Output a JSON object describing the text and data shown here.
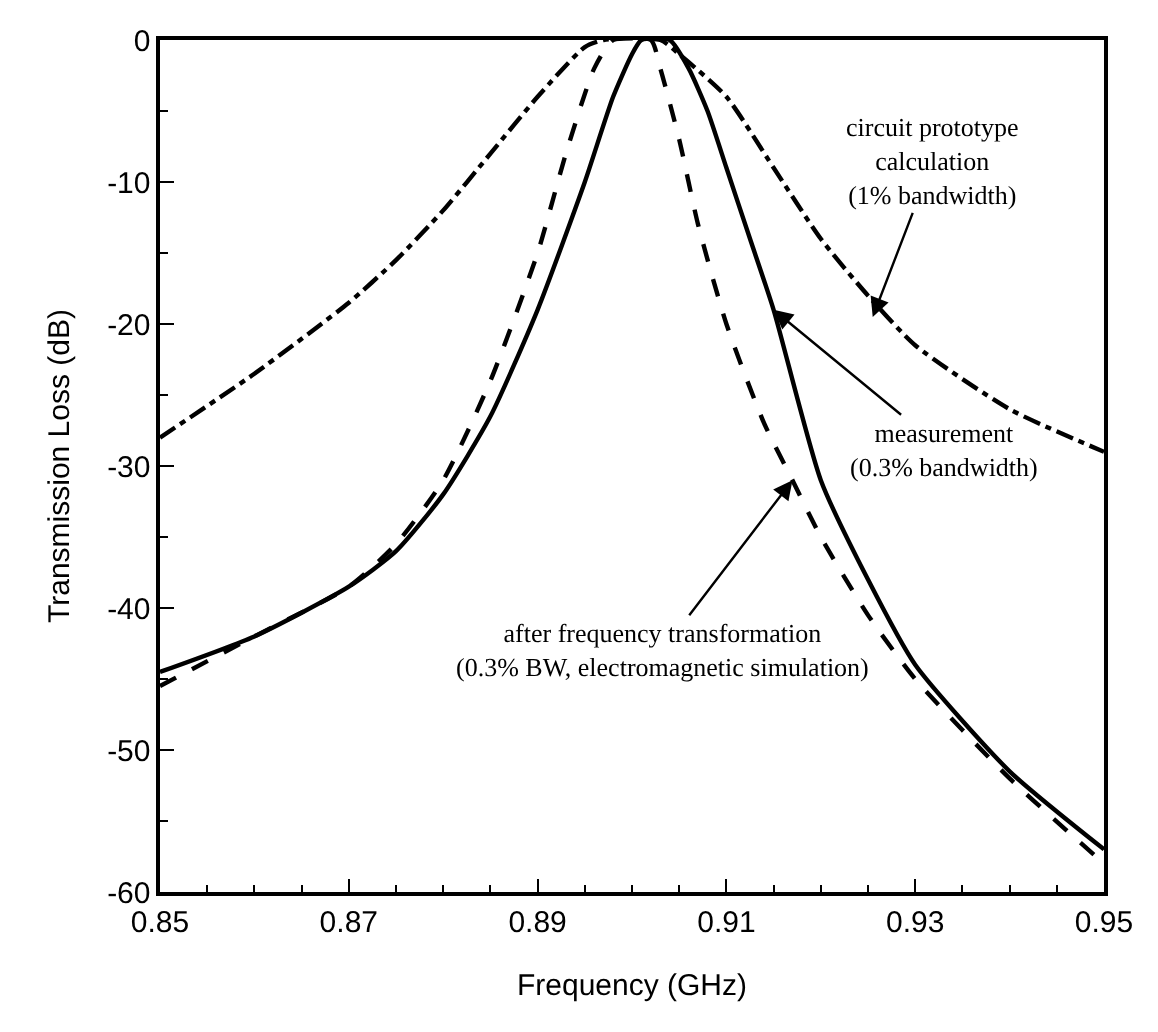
{
  "chart_data": {
    "type": "line",
    "xlabel": "Frequency (GHz)",
    "ylabel": "Transmission Loss (dB)",
    "xlim": [
      0.85,
      0.95
    ],
    "xticks": [
      0.85,
      0.87,
      0.89,
      0.91,
      0.93,
      0.95
    ],
    "ylim": [
      -60,
      0
    ],
    "yticks": [
      -60,
      -50,
      -40,
      -30,
      -20,
      -10,
      0
    ],
    "marker": "none",
    "series": [
      {
        "color": "#000000",
        "line_style": "dashdot",
        "x": [
          0.85,
          0.86,
          0.87,
          0.875,
          0.88,
          0.885,
          0.89,
          0.895,
          0.897,
          0.903,
          0.905,
          0.91,
          0.915,
          0.92,
          0.925,
          0.93,
          0.94,
          0.95
        ],
        "values": [
          -28,
          -23.5,
          -18.5,
          -15.5,
          -12,
          -8,
          -4,
          -0.5,
          0,
          0,
          -1,
          -4,
          -9,
          -14,
          -18,
          -21.5,
          -26,
          -29
        ]
      },
      {
        "color": "#000000",
        "line_style": "solid",
        "x": [
          0.85,
          0.86,
          0.87,
          0.875,
          0.88,
          0.885,
          0.89,
          0.895,
          0.898,
          0.9,
          0.901,
          0.904,
          0.906,
          0.908,
          0.91,
          0.9125,
          0.915,
          0.92,
          0.925,
          0.93,
          0.94,
          0.95
        ],
        "values": [
          -44.5,
          -42,
          -38.5,
          -36,
          -32,
          -26.5,
          -19,
          -10,
          -4,
          -1,
          0,
          0,
          -2,
          -5,
          -9,
          -14,
          -19,
          -31,
          -38,
          -44,
          -51.5,
          -57
        ]
      },
      {
        "color": "#000000",
        "line_style": "dashed",
        "x": [
          0.85,
          0.86,
          0.87,
          0.875,
          0.88,
          0.885,
          0.89,
          0.893,
          0.896,
          0.898,
          0.902,
          0.903,
          0.905,
          0.907,
          0.91,
          0.914,
          0.917,
          0.92,
          0.925,
          0.93,
          0.94,
          0.95
        ],
        "values": [
          -45.5,
          -42,
          -38.5,
          -35.5,
          -31,
          -24,
          -15,
          -8,
          -2,
          0,
          0,
          -2,
          -7,
          -13,
          -20,
          -27,
          -31,
          -35,
          -40.5,
          -45,
          -52,
          -58
        ]
      }
    ],
    "annotations": [
      {
        "text": "circuit prototype\ncalculation\n(1% bandwidth)",
        "x": 0.9255,
        "y": -19.5
      },
      {
        "text": "measurement\n(0.3% bandwidth)",
        "x": 0.915,
        "y": -19
      },
      {
        "text": "after frequency transformation\n(0.3% BW, electromagnetic simulation)",
        "x": 0.917,
        "y": -31
      }
    ]
  }
}
